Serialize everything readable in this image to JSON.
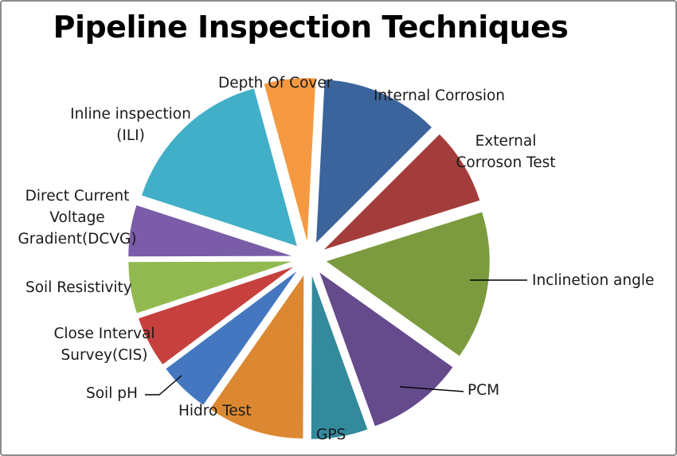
{
  "chart_data": {
    "type": "pie",
    "title": "Pipeline Inspection  Techniques",
    "slices": [
      {
        "label": "Internal Corrosion",
        "value": 11.5,
        "color": "#3b649c"
      },
      {
        "label": "External Corroson Test",
        "value": 7.5,
        "color": "#a33d3b"
      },
      {
        "label": "Inclinetion angle",
        "value": 14.5,
        "color": "#7b9b3e"
      },
      {
        "label": "PCM",
        "value": 9.5,
        "color": "#654a8c"
      },
      {
        "label": "GPS",
        "value": 5.5,
        "color": "#328a9c"
      },
      {
        "label": "Hidro Test",
        "value": 9.5,
        "color": "#dc8832"
      },
      {
        "label": "Soil pH",
        "value": 5.0,
        "color": "#4477c0"
      },
      {
        "label": "Close Interval Survey(CIS)",
        "value": 5.0,
        "color": "#c6413e"
      },
      {
        "label": "Soil Resistivity",
        "value": 5.0,
        "color": "#92b950"
      },
      {
        "label": "Direct Current Voltage Gradient(DCVG)",
        "value": 5.0,
        "color": "#7a5ca8"
      },
      {
        "label": "Inline inspection (ILI)",
        "value": 15.5,
        "color": "#41afc8"
      },
      {
        "label": "Depth Of Cover",
        "value": 5.0,
        "color": "#f59a42"
      }
    ],
    "legend": "none"
  }
}
